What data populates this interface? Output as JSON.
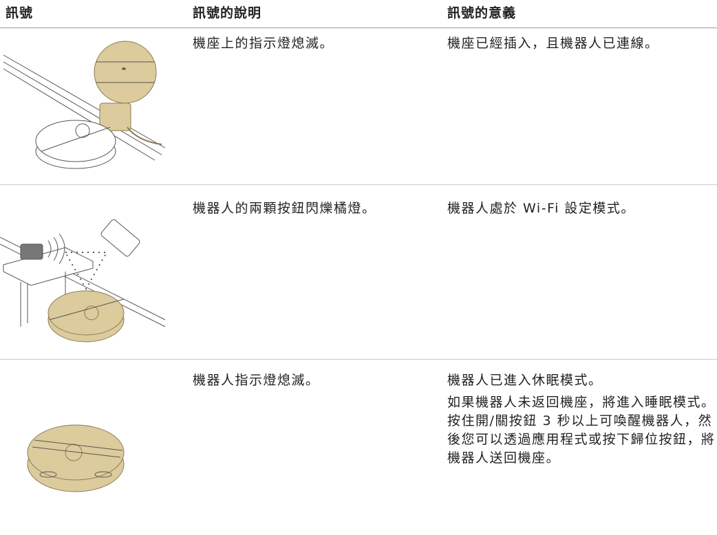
{
  "table": {
    "header": [
      "訊號",
      "訊號的說明",
      "訊號的意義"
    ],
    "rows": [
      {
        "description": "機座上的指示燈熄滅。",
        "meaning": [
          "機座已經插入，且機器人已連線。"
        ]
      },
      {
        "description": "機器人的兩顆按鈕閃爍橘燈。",
        "meaning": [
          "機器人處於 Wi-Fi 設定模式。"
        ]
      },
      {
        "description": "機器人指示燈熄滅。",
        "meaning": [
          "機器人已進入休眠模式。",
          "如果機器人未返回機座，將進入睡眠模式。 按住開/關按鈕 3 秒以上可喚醒機器人，然後您可以透過應用程式或按下歸位按鈕，將機器人送回機座。"
        ]
      }
    ]
  }
}
